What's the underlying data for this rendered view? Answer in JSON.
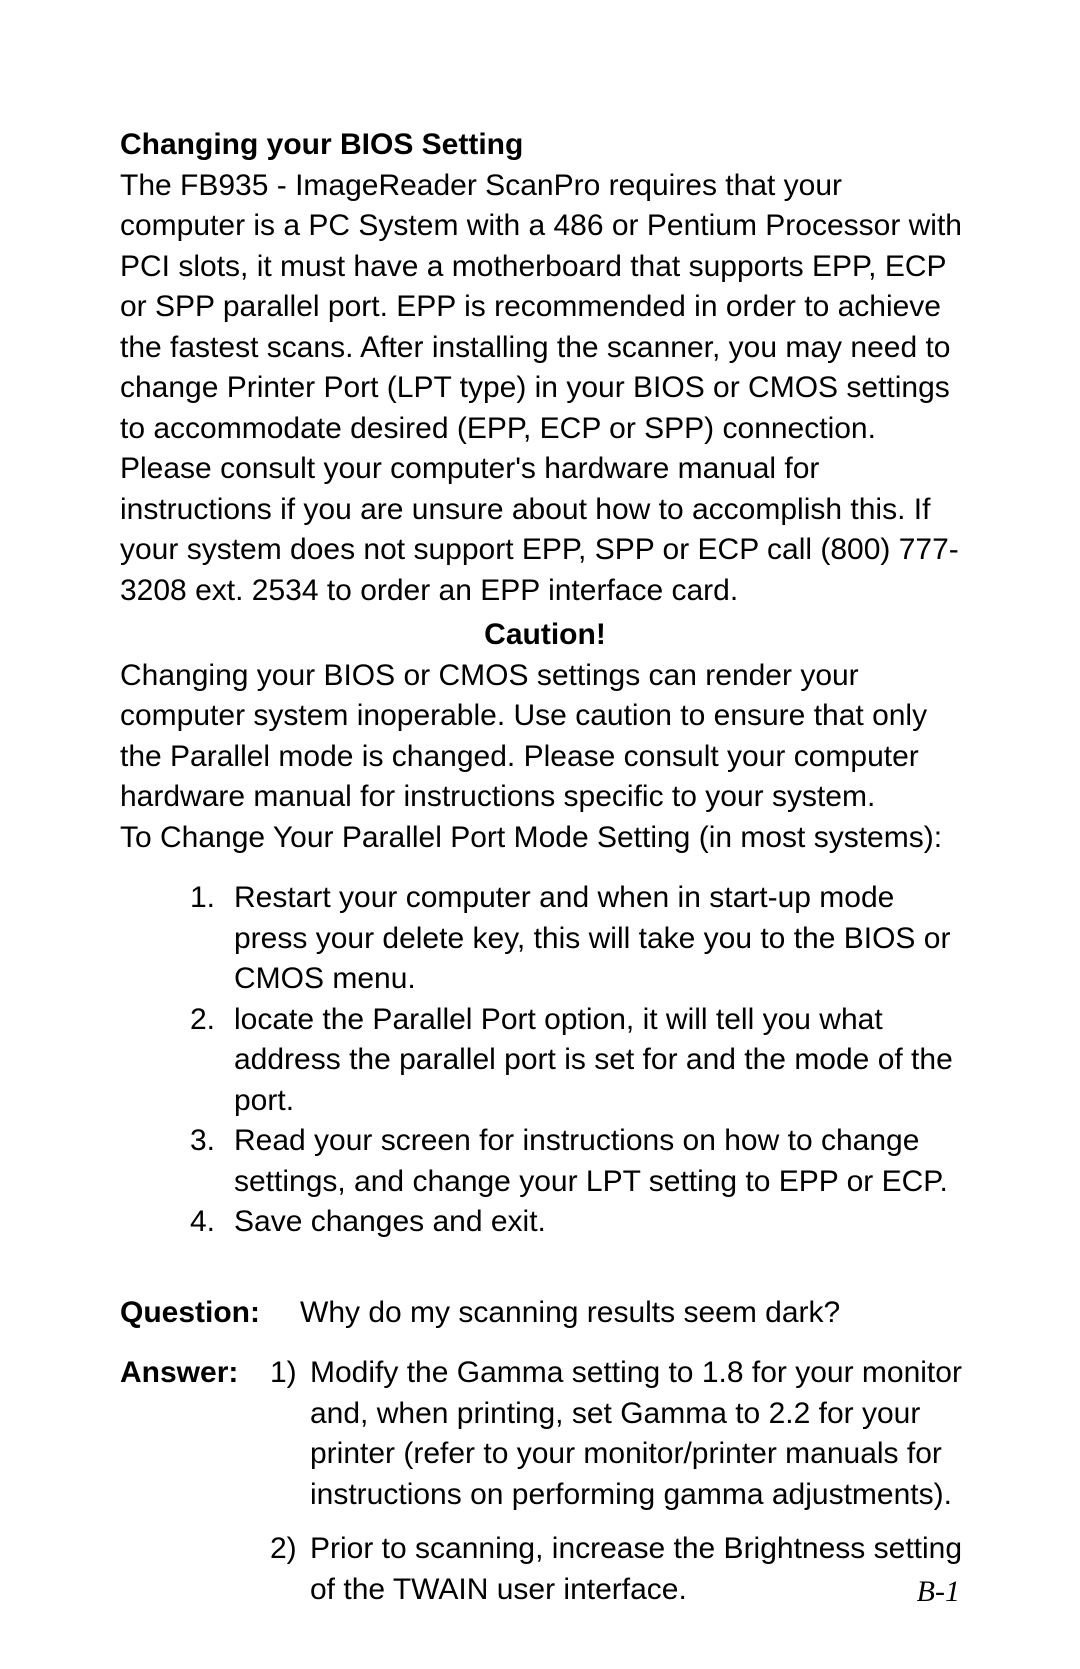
{
  "page": {
    "background_color": "#ffffff",
    "text_color": "#000000",
    "body_font_family": "Arial, Helvetica, sans-serif",
    "body_font_size_pt": 22,
    "heading": "Changing your BIOS Setting",
    "paragraph1": "The FB935 - ImageReader ScanPro requires that your computer is a PC System with a 486 or Pentium Processor with PCI slots, it must have a motherboard that supports EPP, ECP or SPP parallel port.  EPP is recommended in order to achieve the fastest scans. After installing the scanner, you may need to change Printer Port (LPT type) in your BIOS or CMOS settings to accommodate desired (EPP, ECP or SPP) connection.  Please consult your computer's hardware manual for instructions if  you are unsure about how to accomplish this.  If your system does not support EPP, SPP or ECP call (800) 777-3208 ext. 2534 to order an EPP interface card.",
    "caution_label": "Caution!",
    "caution_text": "Changing your BIOS or CMOS settings can render your computer system inoperable.  Use caution to ensure that only the Parallel mode is changed. Please consult your computer hardware manual for instructions specific to your system.",
    "prechange_line": "To Change Your Parallel Port Mode Setting (in most systems):",
    "steps": [
      {
        "n": "1.",
        "t": "Restart your computer and when in start-up mode press your delete key, this will take you to the BIOS or CMOS menu."
      },
      {
        "n": "2.",
        "t": "locate the Parallel Port option, it will tell you what address the parallel port is set for and the mode of the port."
      },
      {
        "n": "3.",
        "t": "Read your screen for instructions on how to change settings, and change your LPT setting to EPP or ECP."
      },
      {
        "n": "4.",
        "t": "Save changes and exit."
      }
    ],
    "qa": {
      "question_label": "Question:",
      "question_text": "Why do my scanning results seem dark?",
      "answer_label": "Answer:",
      "answers": [
        {
          "n": "1)",
          "t": "Modify the Gamma setting to 1.8 for your monitor and, when printing, set Gamma to 2.2 for your printer (refer to your monitor/printer manuals for instructions on performing gamma adjustments)."
        },
        {
          "n": "2)",
          "t": "Prior to scanning, increase the Brightness setting of the TWAIN user interface."
        }
      ]
    },
    "page_number": "B-1",
    "page_number_font_family": "Times New Roman, serif",
    "page_number_font_style": "italic"
  }
}
